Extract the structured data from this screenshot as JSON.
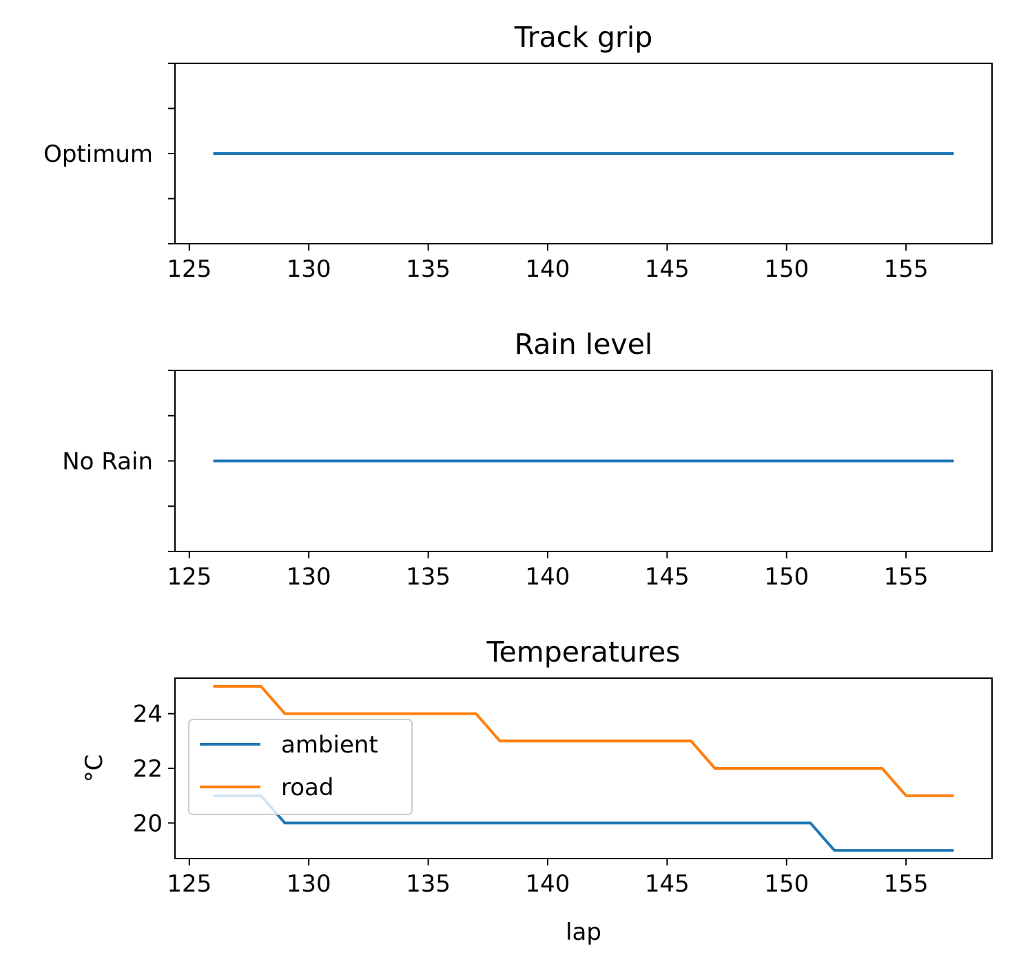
{
  "chart_data": [
    {
      "type": "line",
      "title": "Track grip",
      "xlabel": "",
      "ylabel": "",
      "xticks": [
        "125",
        "130",
        "135",
        "140",
        "145",
        "150",
        "155"
      ],
      "yticks": [
        "Optimum"
      ],
      "xlim": [
        124.4,
        158.6
      ],
      "series": [
        {
          "color": "#1f77b4",
          "x": [
            126,
            157
          ],
          "y": [
            "Optimum",
            "Optimum"
          ]
        }
      ],
      "grid": false
    },
    {
      "type": "line",
      "title": "Rain level",
      "xlabel": "",
      "ylabel": "",
      "xticks": [
        "125",
        "130",
        "135",
        "140",
        "145",
        "150",
        "155"
      ],
      "yticks": [
        "No Rain"
      ],
      "xlim": [
        124.4,
        158.6
      ],
      "series": [
        {
          "color": "#1f77b4",
          "x": [
            126,
            157
          ],
          "y": [
            "No Rain",
            "No Rain"
          ]
        }
      ],
      "grid": false
    },
    {
      "type": "line",
      "title": "Temperatures",
      "xlabel": "lap",
      "ylabel": "°C",
      "xticks": [
        "125",
        "130",
        "135",
        "140",
        "145",
        "150",
        "155"
      ],
      "yticks": [
        "20",
        "22",
        "24"
      ],
      "xlim": [
        124.4,
        158.6
      ],
      "ylim": [
        18.7,
        25.3
      ],
      "legend_position": "center-left",
      "grid": false,
      "series": [
        {
          "name": "ambient",
          "color": "#1f77b4",
          "x": [
            126,
            127,
            128,
            129,
            130,
            131,
            132,
            133,
            134,
            135,
            136,
            137,
            138,
            139,
            140,
            141,
            142,
            143,
            144,
            145,
            146,
            147,
            148,
            149,
            150,
            151,
            152,
            153,
            154,
            155,
            156,
            157
          ],
          "y": [
            21,
            21,
            21,
            20,
            20,
            20,
            20,
            20,
            20,
            20,
            20,
            20,
            20,
            20,
            20,
            20,
            20,
            20,
            20,
            20,
            20,
            20,
            20,
            20,
            20,
            20,
            19,
            19,
            19,
            19,
            19,
            19
          ]
        },
        {
          "name": "road",
          "color": "#ff7f0e",
          "x": [
            126,
            127,
            128,
            129,
            130,
            131,
            132,
            133,
            134,
            135,
            136,
            137,
            138,
            139,
            140,
            141,
            142,
            143,
            144,
            145,
            146,
            147,
            148,
            149,
            150,
            151,
            152,
            153,
            154,
            155,
            156,
            157
          ],
          "y": [
            25,
            25,
            25,
            24,
            24,
            24,
            24,
            24,
            24,
            24,
            24,
            24,
            23,
            23,
            23,
            23,
            23,
            23,
            23,
            23,
            23,
            22,
            22,
            22,
            22,
            22,
            22,
            22,
            22,
            21,
            21,
            21
          ]
        }
      ]
    }
  ]
}
